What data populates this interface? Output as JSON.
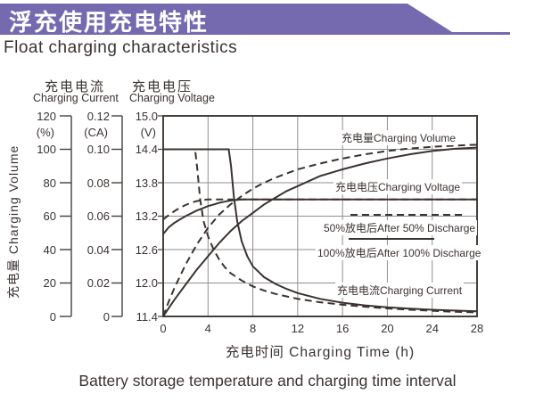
{
  "header": {
    "title": "浮充使用充电特性",
    "subtitle": "Float charging characteristics",
    "banner_color": "#7569b0"
  },
  "footer": {
    "caption": "Battery storage temperature and charging time interval"
  },
  "colors": {
    "ink": "#3a3330",
    "grid": "#8f8f8f",
    "frame": "#45403b",
    "banner": "#7569b0"
  },
  "chart_data": {
    "type": "line",
    "grid": true,
    "x_axis": {
      "label": "充电时间 Charging Time (h)",
      "range": [
        0,
        28
      ],
      "ticks": [
        0,
        4,
        8,
        12,
        16,
        20,
        24,
        28
      ]
    },
    "axes": {
      "volume": {
        "title": "充电量 Charging Volume",
        "unit": "(%)",
        "range": [
          0,
          120
        ],
        "ticks": [
          "120",
          "100",
          "80",
          "60",
          "40",
          "20",
          "0"
        ]
      },
      "current": {
        "title_zh": "充电电流",
        "title_en": "Charging Current",
        "unit": "(CA)",
        "range": [
          0,
          0.12
        ],
        "ticks": [
          "0.12",
          "0.10",
          "0.08",
          "0.06",
          "0.04",
          "0.02",
          "0"
        ]
      },
      "voltage": {
        "title_zh": "充电电压",
        "title_en": "Charging Voltage",
        "unit": "(V)",
        "range": [
          11.4,
          15.0
        ],
        "ticks": [
          "15.0",
          "14.4",
          "13.8",
          "13.2",
          "12.6",
          "12.0",
          "11.4"
        ]
      }
    },
    "curve_labels": {
      "volume": "充电量Charging Volume",
      "voltage": "充电电压Charging Voltage",
      "current": "充电电流Charging Current"
    },
    "legend": [
      {
        "style": "dashed",
        "label": "50%放电后After 50% Discharge"
      },
      {
        "style": "solid",
        "label": "100%放电后After 100% Discharge"
      }
    ],
    "series": [
      {
        "id": "charging-voltage-after-100-discharge",
        "axis": "voltage",
        "line": "solid",
        "points": [
          [
            0,
            12.88
          ],
          [
            0.5,
            13.0
          ],
          [
            1,
            13.08
          ],
          [
            1.5,
            13.14
          ],
          [
            2,
            13.2
          ],
          [
            2.5,
            13.25
          ],
          [
            3,
            13.3
          ],
          [
            3.5,
            13.34
          ],
          [
            4,
            13.38
          ],
          [
            4.5,
            13.41
          ],
          [
            5,
            13.44
          ],
          [
            5.5,
            13.46
          ],
          [
            6,
            13.48
          ],
          [
            6.5,
            13.49
          ],
          [
            7,
            13.5
          ],
          [
            28,
            13.5
          ]
        ]
      },
      {
        "id": "charging-voltage-after-50-discharge",
        "axis": "voltage",
        "line": "dashed",
        "points": [
          [
            0,
            13.14
          ],
          [
            0.5,
            13.22
          ],
          [
            1,
            13.29
          ],
          [
            1.5,
            13.35
          ],
          [
            2,
            13.4
          ],
          [
            2.5,
            13.44
          ],
          [
            3,
            13.47
          ],
          [
            3.5,
            13.49
          ],
          [
            4,
            13.5
          ],
          [
            28,
            13.5
          ]
        ]
      },
      {
        "id": "charging-volume-after-100-discharge",
        "axis": "volume",
        "line": "solid",
        "points": [
          [
            0,
            0
          ],
          [
            0.5,
            5
          ],
          [
            1,
            10
          ],
          [
            2,
            19
          ],
          [
            3,
            28
          ],
          [
            4,
            36
          ],
          [
            5,
            44
          ],
          [
            6,
            51
          ],
          [
            7,
            57
          ],
          [
            8,
            62
          ],
          [
            9,
            67
          ],
          [
            10,
            71
          ],
          [
            11,
            75
          ],
          [
            12,
            78
          ],
          [
            14,
            84
          ],
          [
            16,
            88
          ],
          [
            18,
            91.5
          ],
          [
            20,
            94.5
          ],
          [
            22,
            97
          ],
          [
            24,
            99
          ],
          [
            26,
            100.3
          ],
          [
            28,
            101
          ]
        ]
      },
      {
        "id": "charging-volume-after-50-discharge",
        "axis": "volume",
        "line": "dashed",
        "points": [
          [
            0,
            0
          ],
          [
            0.5,
            9
          ],
          [
            1,
            17
          ],
          [
            2,
            31
          ],
          [
            3,
            43
          ],
          [
            4,
            53
          ],
          [
            5,
            61
          ],
          [
            6,
            67
          ],
          [
            7,
            72
          ],
          [
            8,
            76.5
          ],
          [
            9,
            80
          ],
          [
            10,
            83
          ],
          [
            12,
            88
          ],
          [
            14,
            91.5
          ],
          [
            16,
            94.5
          ],
          [
            18,
            97
          ],
          [
            20,
            99
          ],
          [
            22,
            100.5
          ],
          [
            24,
            101.5
          ],
          [
            26,
            102.2
          ],
          [
            28,
            102.8
          ]
        ]
      },
      {
        "id": "charging-current-after-100-discharge",
        "axis": "current",
        "line": "solid",
        "points": [
          [
            0,
            0.1
          ],
          [
            5.85,
            0.1
          ],
          [
            6.05,
            0.09
          ],
          [
            6.3,
            0.072
          ],
          [
            6.6,
            0.057
          ],
          [
            7,
            0.045
          ],
          [
            7.5,
            0.036
          ],
          [
            8,
            0.03
          ],
          [
            9,
            0.0235
          ],
          [
            10,
            0.0195
          ],
          [
            11,
            0.0165
          ],
          [
            12,
            0.014
          ],
          [
            14,
            0.0105
          ],
          [
            16,
            0.0082
          ],
          [
            18,
            0.0066
          ],
          [
            20,
            0.0055
          ],
          [
            22,
            0.0047
          ],
          [
            24,
            0.004
          ],
          [
            26,
            0.0035
          ],
          [
            28,
            0.0031
          ]
        ]
      },
      {
        "id": "charging-current-after-50-discharge",
        "axis": "current",
        "line": "dashed",
        "points": [
          [
            0,
            0.1
          ],
          [
            2.85,
            0.1
          ],
          [
            3.05,
            0.088
          ],
          [
            3.3,
            0.07
          ],
          [
            3.6,
            0.057
          ],
          [
            4,
            0.048
          ],
          [
            4.5,
            0.04
          ],
          [
            5,
            0.034
          ],
          [
            5.5,
            0.0295
          ],
          [
            6,
            0.026
          ],
          [
            7,
            0.0215
          ],
          [
            8,
            0.018
          ],
          [
            9,
            0.0155
          ],
          [
            10,
            0.0135
          ],
          [
            12,
            0.0105
          ],
          [
            14,
            0.0085
          ],
          [
            16,
            0.007
          ],
          [
            18,
            0.0058
          ],
          [
            20,
            0.0048
          ],
          [
            22,
            0.004
          ],
          [
            24,
            0.0034
          ],
          [
            26,
            0.0028
          ],
          [
            28,
            0.0024
          ]
        ]
      }
    ]
  }
}
